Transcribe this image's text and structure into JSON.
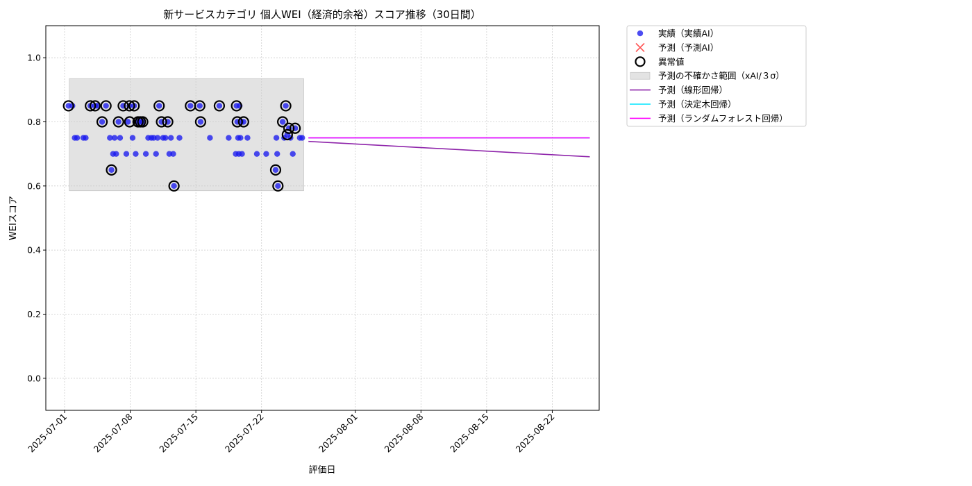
{
  "chart_data": {
    "type": "scatter",
    "title": "新サービスカテゴリ 個人WEI（経済的余裕）スコア推移（30日間）",
    "xlabel": "評価日",
    "ylabel": "WEIスコア",
    "xlim": [
      "2025-06-29",
      "2025-08-27"
    ],
    "ylim": [
      -0.1,
      1.1
    ],
    "yticks": [
      0.0,
      0.2,
      0.4,
      0.6,
      0.8,
      1.0
    ],
    "ytick_labels": [
      "0.0",
      "0.2",
      "0.4",
      "0.6",
      "0.8",
      "1.0"
    ],
    "xticks": [
      "2025-07-01",
      "2025-07-08",
      "2025-07-15",
      "2025-07-22",
      "2025-08-01",
      "2025-08-08",
      "2025-08-15",
      "2025-08-22"
    ],
    "grid": true,
    "legend_position": "outside-top-right",
    "legend": [
      {
        "label": "実績（実績AI）",
        "kind": "dot",
        "color": "#1a1aee"
      },
      {
        "label": "予測（予測AI）",
        "kind": "x",
        "color": "#ff3333"
      },
      {
        "label": "異常値",
        "kind": "ring",
        "color": "#000000"
      },
      {
        "label": "予測の不確かさ範囲（xAI/３σ）",
        "kind": "band",
        "color": "#cccccc"
      },
      {
        "label": "予測（線形回帰）",
        "kind": "line",
        "color": "#8e24aa"
      },
      {
        "label": "予測（決定木回帰）",
        "kind": "line",
        "color": "#00e5ff"
      },
      {
        "label": "予測（ランダムフォレスト回帰）",
        "kind": "line",
        "color": "#ff00ff"
      }
    ],
    "uncertainty_band": {
      "x": [
        "2025-07-01T12:00",
        "2025-07-26T12:00"
      ],
      "y": [
        0.585,
        0.935
      ],
      "color": "#cccccc"
    },
    "series": [
      {
        "name": "実績（実績AI）",
        "kind": "scatter",
        "color": "#1a1aee",
        "points": [
          {
            "x": "2025-07-01T10:00",
            "y": 0.85
          },
          {
            "x": "2025-07-01T20:00",
            "y": 0.85
          },
          {
            "x": "2025-07-02T02:00",
            "y": 0.75
          },
          {
            "x": "2025-07-02T08:00",
            "y": 0.75
          },
          {
            "x": "2025-07-03T00:00",
            "y": 0.75
          },
          {
            "x": "2025-07-03T06:00",
            "y": 0.75
          },
          {
            "x": "2025-07-03T18:00",
            "y": 0.85
          },
          {
            "x": "2025-07-04T06:00",
            "y": 0.85
          },
          {
            "x": "2025-07-04T12:00",
            "y": 0.85
          },
          {
            "x": "2025-07-05T00:00",
            "y": 0.8
          },
          {
            "x": "2025-07-05T10:00",
            "y": 0.85
          },
          {
            "x": "2025-07-05T20:00",
            "y": 0.75
          },
          {
            "x": "2025-07-06T00:00",
            "y": 0.65
          },
          {
            "x": "2025-07-06T04:00",
            "y": 0.7
          },
          {
            "x": "2025-07-06T08:00",
            "y": 0.75
          },
          {
            "x": "2025-07-06T12:00",
            "y": 0.7
          },
          {
            "x": "2025-07-06T18:00",
            "y": 0.8
          },
          {
            "x": "2025-07-06T22:00",
            "y": 0.75
          },
          {
            "x": "2025-07-07T06:00",
            "y": 0.85
          },
          {
            "x": "2025-07-07T14:00",
            "y": 0.7
          },
          {
            "x": "2025-07-07T18:00",
            "y": 0.8
          },
          {
            "x": "2025-07-07T22:00",
            "y": 0.85
          },
          {
            "x": "2025-07-08T06:00",
            "y": 0.75
          },
          {
            "x": "2025-07-08T10:00",
            "y": 0.85
          },
          {
            "x": "2025-07-08T14:00",
            "y": 0.7
          },
          {
            "x": "2025-07-08T20:00",
            "y": 0.8
          },
          {
            "x": "2025-07-09T02:00",
            "y": 0.8
          },
          {
            "x": "2025-07-09T08:00",
            "y": 0.8
          },
          {
            "x": "2025-07-09T16:00",
            "y": 0.7
          },
          {
            "x": "2025-07-09T22:00",
            "y": 0.75
          },
          {
            "x": "2025-07-10T06:00",
            "y": 0.75
          },
          {
            "x": "2025-07-10T12:00",
            "y": 0.75
          },
          {
            "x": "2025-07-10T18:00",
            "y": 0.7
          },
          {
            "x": "2025-07-10T22:00",
            "y": 0.75
          },
          {
            "x": "2025-07-11T02:00",
            "y": 0.85
          },
          {
            "x": "2025-07-11T08:00",
            "y": 0.8
          },
          {
            "x": "2025-07-11T12:00",
            "y": 0.75
          },
          {
            "x": "2025-07-11T18:00",
            "y": 0.75
          },
          {
            "x": "2025-07-12T00:00",
            "y": 0.8
          },
          {
            "x": "2025-07-12T04:00",
            "y": 0.7
          },
          {
            "x": "2025-07-12T08:00",
            "y": 0.75
          },
          {
            "x": "2025-07-12T14:00",
            "y": 0.7
          },
          {
            "x": "2025-07-12T16:00",
            "y": 0.6
          },
          {
            "x": "2025-07-13T06:00",
            "y": 0.75
          },
          {
            "x": "2025-07-14T10:00",
            "y": 0.85
          },
          {
            "x": "2025-07-15T10:00",
            "y": 0.85
          },
          {
            "x": "2025-07-15T12:00",
            "y": 0.8
          },
          {
            "x": "2025-07-16T12:00",
            "y": 0.75
          },
          {
            "x": "2025-07-17T12:00",
            "y": 0.85
          },
          {
            "x": "2025-07-18T12:00",
            "y": 0.75
          },
          {
            "x": "2025-07-19T06:00",
            "y": 0.7
          },
          {
            "x": "2025-07-19T08:00",
            "y": 0.85
          },
          {
            "x": "2025-07-19T10:00",
            "y": 0.8
          },
          {
            "x": "2025-07-19T12:00",
            "y": 0.75
          },
          {
            "x": "2025-07-19T14:00",
            "y": 0.7
          },
          {
            "x": "2025-07-19T16:00",
            "y": 0.85
          },
          {
            "x": "2025-07-19T18:00",
            "y": 0.75
          },
          {
            "x": "2025-07-19T20:00",
            "y": 0.8
          },
          {
            "x": "2025-07-19T22:00",
            "y": 0.7
          },
          {
            "x": "2025-07-20T02:00",
            "y": 0.8
          },
          {
            "x": "2025-07-20T12:00",
            "y": 0.75
          },
          {
            "x": "2025-07-21T12:00",
            "y": 0.7
          },
          {
            "x": "2025-07-22T12:00",
            "y": 0.7
          },
          {
            "x": "2025-07-23T12:00",
            "y": 0.65
          },
          {
            "x": "2025-07-23T14:00",
            "y": 0.75
          },
          {
            "x": "2025-07-23T16:00",
            "y": 0.7
          },
          {
            "x": "2025-07-23T18:00",
            "y": 0.6
          },
          {
            "x": "2025-07-24T06:00",
            "y": 0.8
          },
          {
            "x": "2025-07-24T10:00",
            "y": 0.75
          },
          {
            "x": "2025-07-24T14:00",
            "y": 0.85
          },
          {
            "x": "2025-07-24T18:00",
            "y": 0.76
          },
          {
            "x": "2025-07-24T22:00",
            "y": 0.78
          },
          {
            "x": "2025-07-25T02:00",
            "y": 0.75
          },
          {
            "x": "2025-07-25T08:00",
            "y": 0.7
          },
          {
            "x": "2025-07-25T14:00",
            "y": 0.78
          },
          {
            "x": "2025-07-26T02:00",
            "y": 0.75
          },
          {
            "x": "2025-07-26T08:00",
            "y": 0.75
          }
        ]
      },
      {
        "name": "異常値",
        "kind": "ring",
        "color": "#000000",
        "points": [
          {
            "x": "2025-07-01T10:00",
            "y": 0.85
          },
          {
            "x": "2025-07-03T18:00",
            "y": 0.85
          },
          {
            "x": "2025-07-04T06:00",
            "y": 0.85
          },
          {
            "x": "2025-07-05T00:00",
            "y": 0.8
          },
          {
            "x": "2025-07-05T10:00",
            "y": 0.85
          },
          {
            "x": "2025-07-06T00:00",
            "y": 0.65
          },
          {
            "x": "2025-07-06T18:00",
            "y": 0.8
          },
          {
            "x": "2025-07-07T06:00",
            "y": 0.85
          },
          {
            "x": "2025-07-07T22:00",
            "y": 0.85
          },
          {
            "x": "2025-07-08T10:00",
            "y": 0.85
          },
          {
            "x": "2025-07-07T22:30",
            "y": 0.8
          },
          {
            "x": "2025-07-08T20:00",
            "y": 0.8
          },
          {
            "x": "2025-07-09T02:00",
            "y": 0.8
          },
          {
            "x": "2025-07-09T08:00",
            "y": 0.8
          },
          {
            "x": "2025-07-11T02:00",
            "y": 0.85
          },
          {
            "x": "2025-07-11T08:00",
            "y": 0.8
          },
          {
            "x": "2025-07-12T00:00",
            "y": 0.8
          },
          {
            "x": "2025-07-12T16:00",
            "y": 0.6
          },
          {
            "x": "2025-07-14T10:00",
            "y": 0.85
          },
          {
            "x": "2025-07-15T10:00",
            "y": 0.85
          },
          {
            "x": "2025-07-15T12:00",
            "y": 0.8
          },
          {
            "x": "2025-07-17T12:00",
            "y": 0.85
          },
          {
            "x": "2025-07-19T08:00",
            "y": 0.85
          },
          {
            "x": "2025-07-19T10:00",
            "y": 0.8
          },
          {
            "x": "2025-07-20T02:00",
            "y": 0.8
          },
          {
            "x": "2025-07-23T12:00",
            "y": 0.65
          },
          {
            "x": "2025-07-23T18:00",
            "y": 0.6
          },
          {
            "x": "2025-07-24T06:00",
            "y": 0.8
          },
          {
            "x": "2025-07-24T14:00",
            "y": 0.85
          },
          {
            "x": "2025-07-24T18:00",
            "y": 0.76
          },
          {
            "x": "2025-07-24T22:00",
            "y": 0.78
          },
          {
            "x": "2025-07-25T14:00",
            "y": 0.78
          }
        ]
      },
      {
        "name": "予測（線形回帰）",
        "kind": "line",
        "color": "#8e24aa",
        "points": [
          {
            "x": "2025-07-27T00:00",
            "y": 0.739
          },
          {
            "x": "2025-08-26T00:00",
            "y": 0.691
          }
        ]
      },
      {
        "name": "予測（決定木回帰）",
        "kind": "line",
        "color": "#00e5ff",
        "points": [
          {
            "x": "2025-07-27T00:00",
            "y": 0.75
          },
          {
            "x": "2025-08-26T00:00",
            "y": 0.75
          }
        ]
      },
      {
        "name": "予測（ランダムフォレスト回帰）",
        "kind": "line",
        "color": "#ff00ff",
        "points": [
          {
            "x": "2025-07-27T00:00",
            "y": 0.75
          },
          {
            "x": "2025-08-26T00:00",
            "y": 0.75
          }
        ]
      }
    ]
  }
}
